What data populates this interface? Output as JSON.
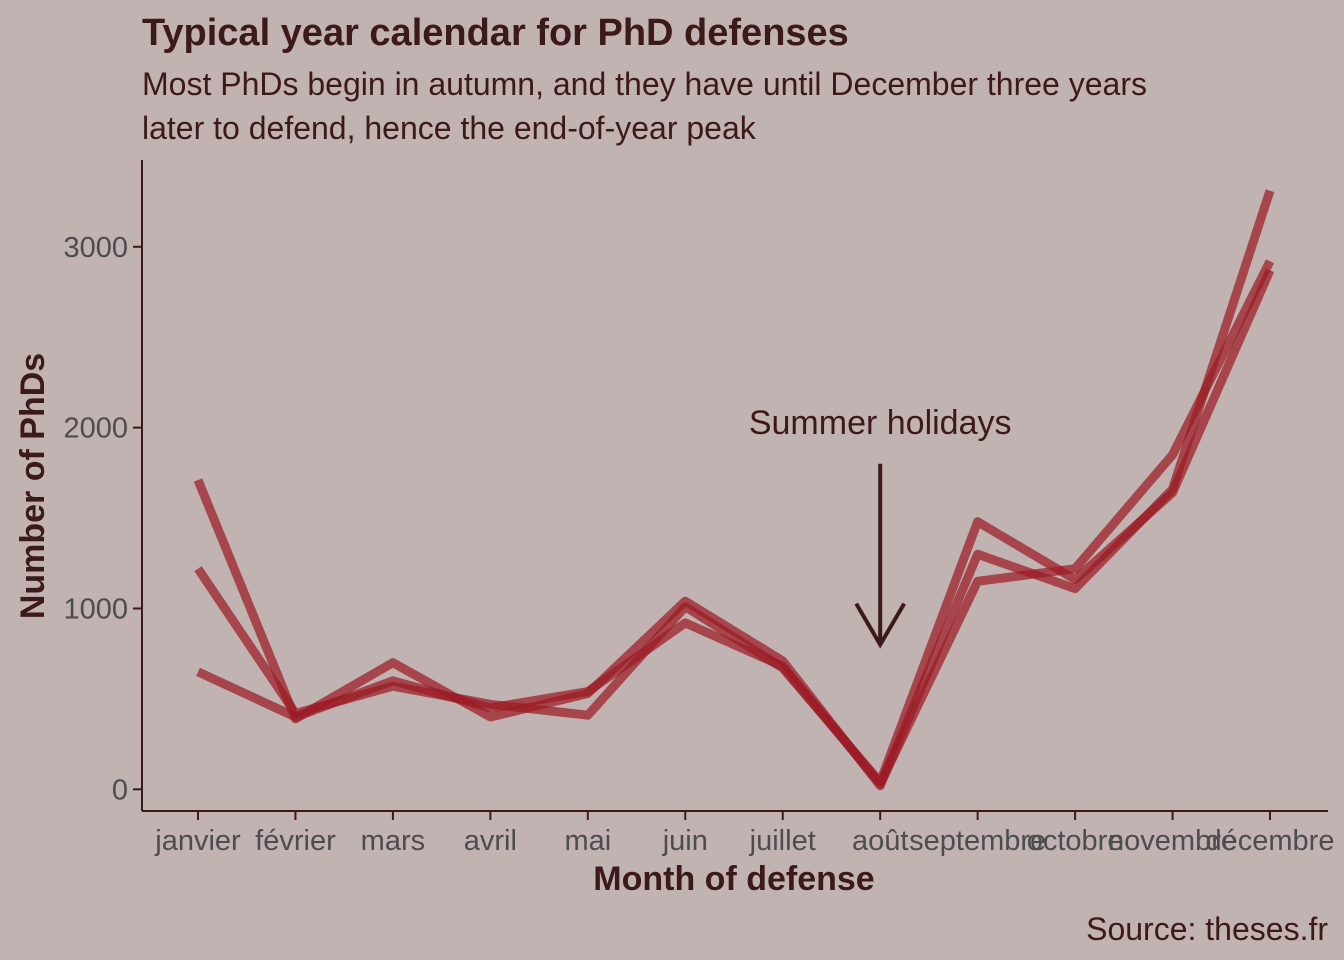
{
  "colors": {
    "background": "#c2b3b3",
    "line": "#9b1b24",
    "text": "#3d1a1a",
    "tick_text": "#4d4d4d",
    "axis": "#3d1a1a"
  },
  "chart_data": {
    "type": "line",
    "title": "Typical year calendar for PhD defenses",
    "subtitle_lines": [
      "Most PhDs begin in autumn, and they have until December three years",
      "later to defend, hence the end-of-year peak"
    ],
    "xlabel": "Month of defense",
    "ylabel": "Number of PhDs",
    "caption": "Source: theses.fr",
    "categories": [
      "janvier",
      "février",
      "mars",
      "avril",
      "mai",
      "juin",
      "juillet",
      "août",
      "septembre",
      "octobre",
      "novembre",
      "décembre"
    ],
    "ylim": [
      -120,
      3480
    ],
    "yticks": [
      0,
      1000,
      2000,
      3000
    ],
    "grid": false,
    "legend": "none",
    "series": [
      {
        "values": [
          1710,
          390,
          700,
          400,
          530,
          1040,
          710,
          20,
          1300,
          1110,
          1660,
          3310
        ]
      },
      {
        "values": [
          1220,
          420,
          570,
          470,
          410,
          1010,
          670,
          40,
          1480,
          1160,
          1640,
          2870
        ]
      },
      {
        "values": [
          650,
          400,
          600,
          450,
          540,
          920,
          680,
          30,
          1150,
          1220,
          1850,
          2920
        ]
      }
    ],
    "annotation": {
      "text": "Summer holidays",
      "category": "août",
      "arrow_from": 1800,
      "arrow_to": 800
    }
  }
}
